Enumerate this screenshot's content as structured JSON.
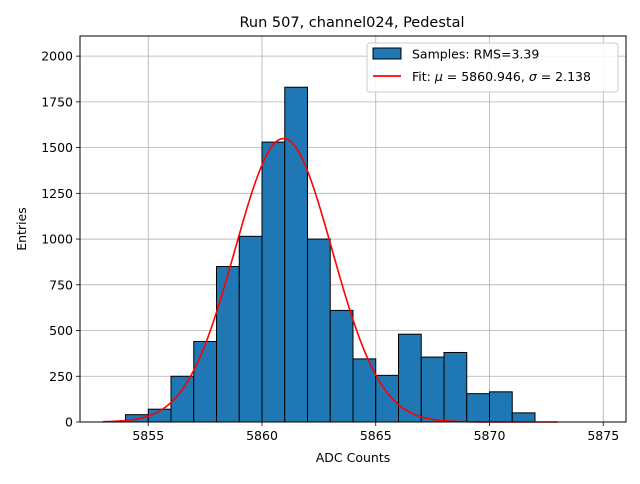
{
  "chart_data": {
    "type": "bar",
    "title": "Run 507, channel024, Pedestal",
    "xlabel": "ADC Counts",
    "ylabel": "Entries",
    "xlim": [
      5852.0,
      5876.0
    ],
    "ylim": [
      0,
      2110
    ],
    "grid": true,
    "legend_position": "top-right",
    "x_ticks": [
      5855,
      5860,
      5865,
      5870,
      5875
    ],
    "y_ticks": [
      0,
      250,
      500,
      750,
      1000,
      1250,
      1500,
      1750,
      2000
    ],
    "histogram": {
      "name": "Samples: RMS=3.39",
      "color": "#1f77b4",
      "edge_color": "#000000",
      "bin_edges": [
        5854,
        5855,
        5856,
        5857,
        5858,
        5859,
        5860,
        5861,
        5862,
        5863,
        5864,
        5865,
        5866,
        5867,
        5868,
        5869,
        5870,
        5871,
        5872
      ],
      "values": [
        40,
        70,
        250,
        440,
        850,
        1015,
        1530,
        1830,
        1000,
        610,
        345,
        255,
        480,
        355,
        380,
        155,
        165,
        50
      ]
    },
    "fit": {
      "label_prefix": "Fit: ",
      "mu_symbol": "μ",
      "mu_value": " = 5860.946, ",
      "sigma_symbol": "σ",
      "sigma_value": " = 2.138",
      "color": "#ff0000",
      "mu": 5860.946,
      "sigma": 2.138,
      "amplitude": 1550,
      "x_range": [
        5853.0,
        5873.0
      ]
    }
  }
}
